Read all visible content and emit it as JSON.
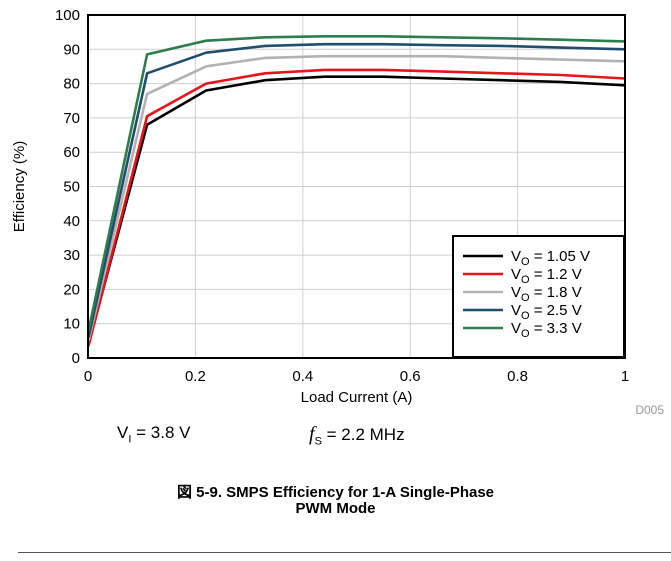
{
  "chart_data": {
    "type": "line",
    "xlabel": "Load Current (A)",
    "ylabel": "Efficiency (%)",
    "xlim": [
      0,
      1
    ],
    "ylim": [
      0,
      100
    ],
    "x_ticks": [
      "0",
      "0.2",
      "0.4",
      "0.6",
      "0.8",
      "1"
    ],
    "y_ticks": [
      "0",
      "10",
      "20",
      "30",
      "40",
      "50",
      "60",
      "70",
      "80",
      "90",
      "100"
    ],
    "grid": true,
    "legend_position": "bottom-right",
    "x": [
      0.001,
      0.11,
      0.22,
      0.33,
      0.44,
      0.55,
      0.66,
      0.77,
      0.88,
      1.0
    ],
    "series": [
      {
        "name": "V_O = 1.05 V",
        "label_main": "V",
        "label_sub": "O",
        "label_rest": " = 1.05 V",
        "color": "#000000",
        "values": [
          4,
          68,
          78,
          81,
          82,
          82,
          81.5,
          81,
          80.5,
          79.5
        ]
      },
      {
        "name": "V_O = 1.2 V",
        "label_main": "V",
        "label_sub": "O",
        "label_rest": " = 1.2 V",
        "color": "#e8141b",
        "values": [
          3.5,
          70.5,
          80,
          83,
          84,
          84,
          83.5,
          83,
          82.5,
          81.5
        ]
      },
      {
        "name": "V_O = 1.8 V",
        "label_main": "V",
        "label_sub": "O",
        "label_rest": " = 1.8 V",
        "color": "#b2b2b2",
        "values": [
          5,
          77,
          85,
          87.5,
          88,
          88,
          88,
          87.5,
          87,
          86.5
        ]
      },
      {
        "name": "V_O = 2.5 V",
        "label_main": "V",
        "label_sub": "O",
        "label_rest": " = 2.5 V",
        "color": "#1f4e6e",
        "values": [
          6,
          83,
          89,
          91,
          91.5,
          91.5,
          91.2,
          91,
          90.5,
          90
        ]
      },
      {
        "name": "V_O = 3.3 V",
        "label_main": "V",
        "label_sub": "O",
        "label_rest": " = 3.3 V",
        "color": "#2e7d4f",
        "values": [
          8,
          88.5,
          92.5,
          93.5,
          93.8,
          93.8,
          93.5,
          93.2,
          92.8,
          92.3
        ]
      }
    ],
    "code": "D005"
  },
  "conditions": {
    "vi_main": "V",
    "vi_sub": "I",
    "vi_rest": " = 3.8 V",
    "fs_main": "f",
    "fs_sub": "S",
    "fs_rest": " = 2.2 MHz"
  },
  "caption": {
    "line1": "図 5-9. SMPS Efficiency for 1-A Single-Phase",
    "line2": "PWM Mode"
  }
}
